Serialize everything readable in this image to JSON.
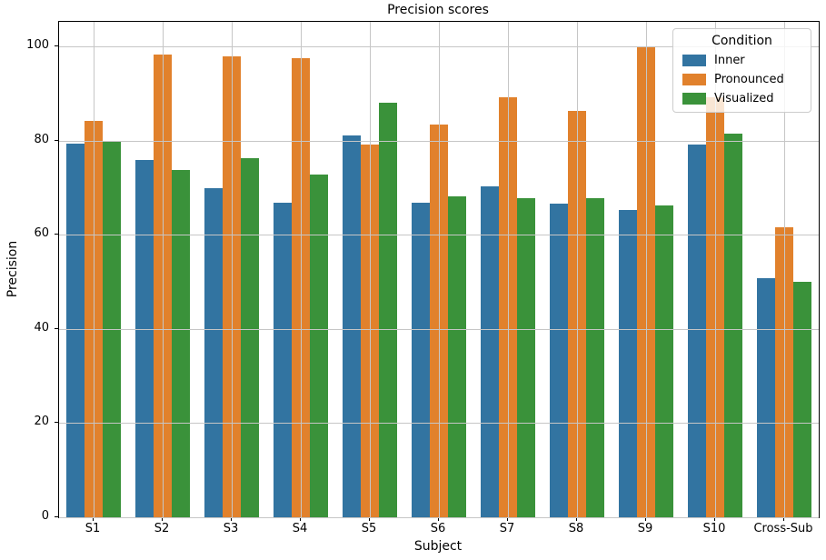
{
  "chart_data": {
    "type": "bar",
    "title": "Precision scores",
    "xlabel": "Subject",
    "ylabel": "Precision",
    "categories": [
      "S1",
      "S2",
      "S3",
      "S4",
      "S5",
      "S6",
      "S7",
      "S8",
      "S9",
      "S10",
      "Cross-Sub"
    ],
    "series": [
      {
        "name": "Inner",
        "color": "#3274a1",
        "values": [
          79.5,
          76.0,
          70.0,
          66.8,
          81.2,
          66.9,
          70.4,
          66.7,
          65.3,
          79.3,
          50.9
        ]
      },
      {
        "name": "Pronounced",
        "color": "#e1812c",
        "values": [
          84.3,
          98.4,
          98.0,
          97.5,
          79.3,
          83.4,
          89.2,
          86.4,
          99.9,
          89.3,
          61.6
        ]
      },
      {
        "name": "Visualized",
        "color": "#3a923a",
        "values": [
          80.0,
          73.8,
          76.3,
          72.9,
          88.1,
          68.3,
          67.9,
          67.9,
          66.2,
          81.6,
          50.1
        ]
      }
    ],
    "yticks": [
      0,
      20,
      40,
      60,
      80,
      100
    ],
    "ylim": [
      0,
      105.3
    ],
    "grid": true,
    "grid_color": "#c6c6c6",
    "legend_title": "Condition",
    "legend_position": "upper right"
  }
}
